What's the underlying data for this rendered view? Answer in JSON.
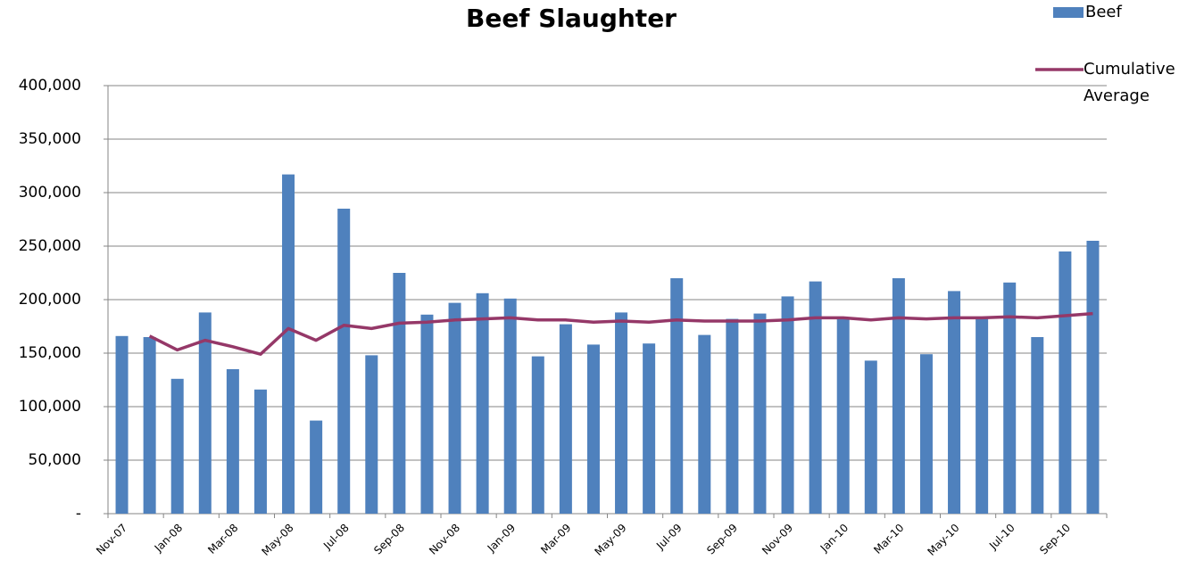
{
  "chart_data": {
    "type": "bar-line",
    "title": "Beef Slaughter",
    "categories": [
      "Nov-07",
      null,
      "Jan-08",
      null,
      "Mar-08",
      null,
      "May-08",
      null,
      "Jul-08",
      null,
      "Sep-08",
      null,
      "Nov-08",
      null,
      "Jan-09",
      null,
      "Mar-09",
      null,
      "May-09",
      null,
      "Jul-09",
      null,
      "Sep-09",
      null,
      "Nov-09",
      null,
      "Jan-10",
      null,
      "Mar-10",
      null,
      "May-10",
      null,
      "Jul-10",
      null,
      "Sep-10",
      null
    ],
    "series": [
      {
        "name": "Beef",
        "type": "bar",
        "color": "#4f81bd",
        "values": [
          166000,
          165000,
          126000,
          188000,
          135000,
          116000,
          317000,
          87000,
          285000,
          148000,
          225000,
          186000,
          197000,
          206000,
          201000,
          147000,
          177000,
          158000,
          188000,
          159000,
          220000,
          167000,
          182000,
          187000,
          203000,
          217000,
          183000,
          143000,
          220000,
          149000,
          208000,
          183000,
          216000,
          165000,
          245000,
          255000
        ]
      },
      {
        "name": "Cumulative Average",
        "type": "line",
        "color": "#953868",
        "values": [
          null,
          166000,
          153000,
          162000,
          156000,
          149000,
          173000,
          162000,
          176000,
          173000,
          178000,
          179000,
          181000,
          182000,
          183000,
          181000,
          181000,
          179000,
          180000,
          179000,
          181000,
          180000,
          180000,
          180000,
          181000,
          183000,
          183000,
          181000,
          183000,
          182000,
          183000,
          183000,
          184000,
          183000,
          185000,
          187000
        ]
      }
    ],
    "ylim": [
      0,
      400000
    ],
    "yticks": [
      {
        "value": 0,
        "label": "-"
      },
      {
        "value": 50000,
        "label": "50,000"
      },
      {
        "value": 100000,
        "label": "100,000"
      },
      {
        "value": 150000,
        "label": "150,000"
      },
      {
        "value": 200000,
        "label": "200,000"
      },
      {
        "value": 250000,
        "label": "250,000"
      },
      {
        "value": 300000,
        "label": "300,000"
      },
      {
        "value": 350000,
        "label": "350,000"
      },
      {
        "value": 400000,
        "label": "400,000"
      }
    ],
    "grid": true,
    "legend": "top-right"
  }
}
